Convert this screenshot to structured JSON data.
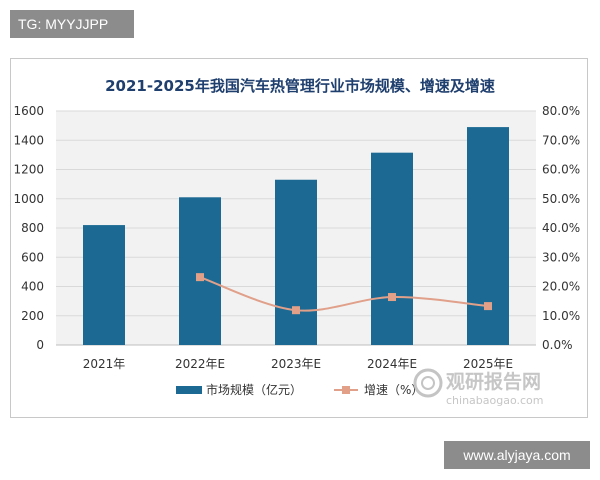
{
  "tag": "TG: MYYJJPP",
  "website": "www.alyjaya.com",
  "watermark": {
    "cn": "观研报告网",
    "en": "chinabaogao.com"
  },
  "colors": {
    "bar": "#1c6a93",
    "line": "#e0a08a",
    "marker": "#e3a088",
    "grid": "#d9d9d9",
    "title": "#1f3f6e",
    "plot_bg": "#f2f2f2"
  },
  "chart_data": {
    "type": "bar",
    "title": "2021-2025年我国汽车热管理行业市场规模、增速及增速",
    "categories": [
      "2021年",
      "2022年E",
      "2023年E",
      "2024年E",
      "2025年E"
    ],
    "series": [
      {
        "name": "市场规模（亿元）",
        "type": "bar",
        "axis": "left",
        "values": [
          820,
          1010,
          1130,
          1315,
          1490
        ]
      },
      {
        "name": "增速（%）",
        "type": "line",
        "axis": "right",
        "values": [
          null,
          23.2,
          11.9,
          16.4,
          13.3
        ]
      }
    ],
    "y_left": {
      "min": 0,
      "max": 1600,
      "step": 200,
      "ticks": [
        "0",
        "200",
        "400",
        "600",
        "800",
        "1000",
        "1200",
        "1400",
        "1600"
      ]
    },
    "y_right": {
      "min": 0,
      "max": 80,
      "step": 10,
      "ticks": [
        "0.0%",
        "10.0%",
        "20.0%",
        "30.0%",
        "40.0%",
        "50.0%",
        "60.0%",
        "70.0%",
        "80.0%"
      ]
    },
    "grid": true,
    "legend_position": "bottom"
  }
}
